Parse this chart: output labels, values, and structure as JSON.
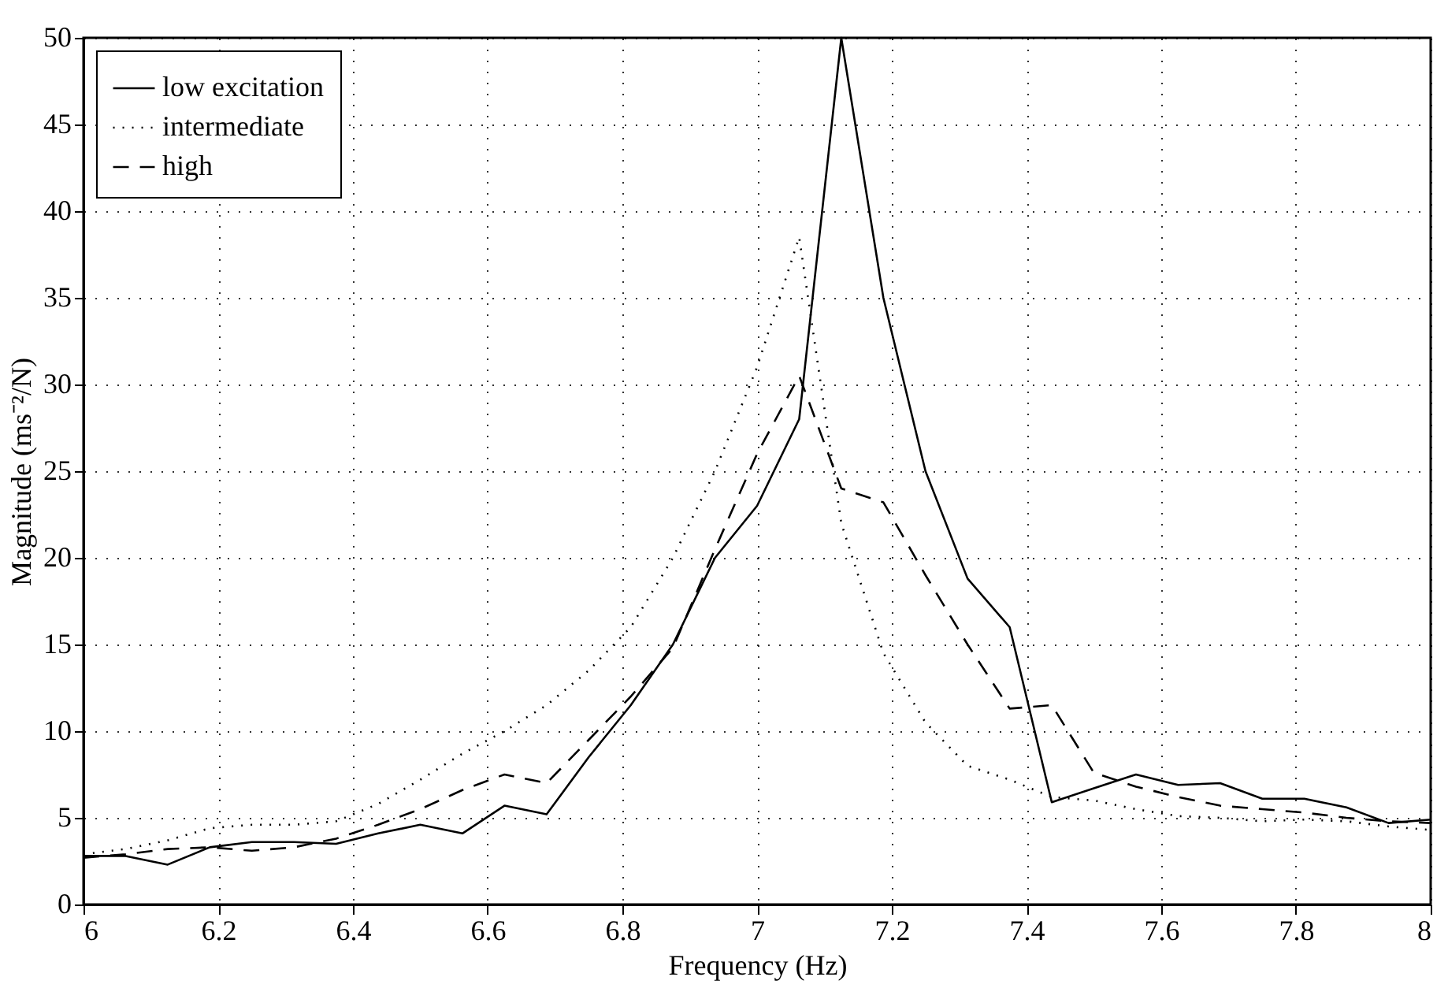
{
  "chart_data": {
    "type": "line",
    "xlabel": "Frequency (Hz)",
    "ylabel": "Magnitude (ms⁻²/N)",
    "x": [
      6,
      6.0625,
      6.125,
      6.1875,
      6.25,
      6.3125,
      6.375,
      6.4375,
      6.5,
      6.5625,
      6.625,
      6.6875,
      6.75,
      6.8125,
      6.875,
      6.9375,
      7,
      7.0625,
      7.125,
      7.1875,
      7.25,
      7.3125,
      7.375,
      7.4375,
      7.5,
      7.5625,
      7.625,
      7.6875,
      7.75,
      7.8125,
      7.875,
      7.9375,
      8
    ],
    "series": [
      {
        "name": "low excitation",
        "color": "#000000",
        "line_style": "solid",
        "values": [
          2.8,
          2.8,
          2.3,
          3.3,
          3.6,
          3.6,
          3.5,
          4.1,
          4.6,
          4.1,
          5.7,
          5.2,
          8.5,
          11.5,
          15,
          20,
          23,
          28,
          50,
          35,
          25,
          18.8,
          16,
          5.9,
          6.7,
          7.5,
          6.9,
          7.0,
          6.1,
          6.1,
          5.6,
          4.7,
          4.9
        ]
      },
      {
        "name": "intermediate",
        "color": "#000000",
        "line_style": "dotted",
        "values": [
          2.9,
          3.2,
          3.7,
          4.4,
          4.6,
          4.6,
          4.8,
          5.8,
          7.2,
          8.7,
          10,
          11.5,
          13.5,
          16,
          20,
          25,
          31,
          38.5,
          22,
          14.5,
          10.5,
          8,
          7.2,
          6.2,
          6,
          5.5,
          5.1,
          5,
          4.8,
          4.9,
          4.8,
          4.5,
          4.3
        ]
      },
      {
        "name": "high",
        "color": "#000000",
        "line_style": "dashed",
        "values": [
          2.7,
          2.9,
          3.2,
          3.3,
          3.1,
          3.3,
          3.8,
          4.6,
          5.5,
          6.6,
          7.5,
          7.0,
          9.5,
          12,
          14.8,
          20.5,
          26,
          30.5,
          24,
          23.2,
          19,
          15,
          11.3,
          11.5,
          7.6,
          6.8,
          6.2,
          5.7,
          5.5,
          5.3,
          5.0,
          4.8,
          4.7
        ]
      }
    ],
    "xlim": [
      6,
      8
    ],
    "xticks": [
      6,
      6.2,
      6.4,
      6.6,
      6.8,
      7,
      7.2,
      7.4,
      7.6,
      7.8,
      8
    ],
    "ylim": [
      0,
      50
    ],
    "yticks": [
      0,
      5,
      10,
      15,
      20,
      25,
      30,
      35,
      40,
      45,
      50
    ],
    "grid": true,
    "legend": "top left",
    "marker": "none"
  }
}
